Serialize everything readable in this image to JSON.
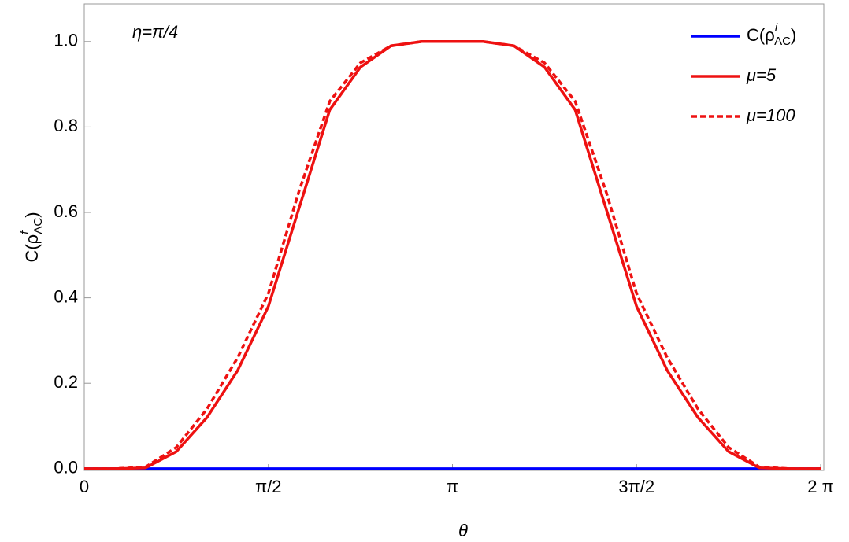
{
  "chart_data": {
    "type": "line",
    "annotation": "η=π/4",
    "xlabel": "θ",
    "ylabel": [
      "C(ρ",
      "f",
      "AC",
      ")"
    ],
    "x": [
      0,
      0.2618,
      0.5236,
      0.7854,
      1.0472,
      1.309,
      1.5708,
      1.8326,
      2.0944,
      2.3562,
      2.618,
      2.8798,
      3.1416,
      3.4034,
      3.6652,
      3.927,
      4.1888,
      4.4506,
      4.7124,
      4.9742,
      5.236,
      5.4978,
      5.7596,
      6.0214,
      6.2832
    ],
    "series": [
      {
        "name": [
          "C(ρ",
          "i",
          "AC",
          ")"
        ],
        "color": "#0000ff",
        "dash": false,
        "values": [
          0,
          0,
          0,
          0,
          0,
          0,
          0,
          0,
          0,
          0,
          0,
          0,
          0,
          0,
          0,
          0,
          0,
          0,
          0,
          0,
          0,
          0,
          0,
          0,
          0
        ]
      },
      {
        "name": "μ=5",
        "color": "#ee1111",
        "dash": false,
        "values": [
          0,
          0,
          0.002,
          0.04,
          0.12,
          0.23,
          0.38,
          0.61,
          0.84,
          0.94,
          0.99,
          1.0,
          1.0,
          1.0,
          0.99,
          0.94,
          0.84,
          0.61,
          0.38,
          0.23,
          0.12,
          0.04,
          0.002,
          0,
          0
        ]
      },
      {
        "name": "μ=100",
        "color": "#ee1111",
        "dash": true,
        "values": [
          0,
          0,
          0.004,
          0.05,
          0.14,
          0.26,
          0.41,
          0.65,
          0.86,
          0.95,
          0.99,
          1.0,
          1.0,
          1.0,
          0.99,
          0.95,
          0.86,
          0.65,
          0.41,
          0.26,
          0.14,
          0.05,
          0.004,
          0,
          0
        ]
      }
    ],
    "xlim": [
      0,
      6.31
    ],
    "ylim": [
      -0.004,
      1.088
    ],
    "xticks": [
      0,
      {
        "value": 1.5708,
        "label": "π/2"
      },
      {
        "value": 3.1416,
        "label": "π"
      },
      {
        "value": 4.7124,
        "label": "3π/2"
      },
      {
        "value": 6.2832,
        "label": "2 π"
      }
    ],
    "yticks": [
      {
        "value": 0,
        "label": "0.0"
      },
      0.2,
      0.4,
      0.6,
      0.8,
      {
        "value": 1,
        "label": "1.0"
      }
    ],
    "legend": "upper right",
    "grid": false
  }
}
